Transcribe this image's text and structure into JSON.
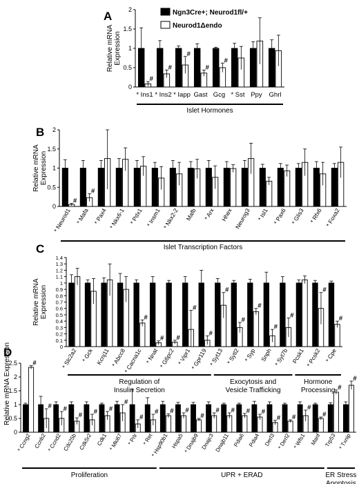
{
  "legend": [
    {
      "label": "Ngn3Cre+; Neurod1fl/+",
      "fill": "#000000"
    },
    {
      "label": "Neurod1Δendo",
      "fill": "#ffffff"
    }
  ],
  "chart_data": [
    {
      "panel": "A",
      "type": "bar",
      "ylabel": "Relative mRNA Expression",
      "ylim": [
        0,
        2
      ],
      "yticks": [
        "0",
        "0.5",
        "1",
        "1.5",
        "2"
      ],
      "categories": [
        "Ins1",
        "Ins2",
        "Iapp",
        "Gast",
        "Gcg",
        "Sst",
        "Ppy",
        "Ghrl"
      ],
      "starred": [
        true,
        true,
        true,
        false,
        false,
        true,
        false,
        false
      ],
      "series": [
        {
          "name": "Ngn3Cre+; Neurod1fl/+",
          "values": [
            1,
            1,
            1,
            1,
            1,
            1,
            1,
            1
          ],
          "errors": [
            0.53,
            0.2,
            0.06,
            0.12,
            0.03,
            0.13,
            0.17,
            0.22
          ]
        },
        {
          "name": "Neurod1Δendo",
          "values": [
            0.08,
            0.34,
            0.57,
            0.36,
            0.5,
            0.75,
            1.19,
            0.94
          ],
          "errors": [
            0.06,
            0.1,
            0.22,
            0.08,
            0.12,
            0.3,
            0.6,
            0.4
          ]
        }
      ],
      "sig": [
        true,
        true,
        true,
        true,
        true,
        false,
        false,
        false
      ],
      "groups": [
        {
          "label": "Islet Hormones",
          "from": 0,
          "to": 7
        }
      ]
    },
    {
      "panel": "B",
      "type": "bar",
      "ylabel": "Relative mRNA Expression",
      "ylim": [
        0,
        2
      ],
      "yticks": [
        "0",
        "0.5",
        "1",
        "1.5",
        "2"
      ],
      "categories": [
        "Neurod1",
        "Mafa",
        "Pax4",
        "Nkx6-1",
        "Pdx1",
        "Insm1",
        "Nkx2-2",
        "Mafb",
        "Arx",
        "Hhex",
        "Neurog3",
        "Isl1",
        "Pax6",
        "Glis3",
        "Rfx6",
        "Foxa2"
      ],
      "starred": [
        true,
        true,
        true,
        true,
        true,
        true,
        true,
        false,
        true,
        false,
        false,
        true,
        true,
        true,
        true,
        true
      ],
      "series": [
        {
          "name": "Ngn3Cre+; Neurod1fl/+",
          "values": [
            1,
            1,
            1,
            1,
            1,
            1,
            1,
            1,
            1,
            1,
            1,
            1,
            1,
            1,
            1,
            1
          ],
          "errors": [
            0.22,
            0.2,
            0.2,
            0.25,
            0.2,
            0.15,
            0.2,
            0.17,
            0.2,
            0.17,
            0.2,
            0.1,
            0.12,
            0.12,
            0.17,
            0.12
          ]
        },
        {
          "name": "Neurod1Δendo",
          "values": [
            0.05,
            0.23,
            1.25,
            1.23,
            1.05,
            0.74,
            0.85,
            0.98,
            0.76,
            0.99,
            1.25,
            0.66,
            0.93,
            1.15,
            0.85,
            1.15
          ]
        },
        {
          "name": "error_ko",
          "values": [
            0.03,
            0.1,
            0.8,
            0.3,
            0.25,
            0.3,
            0.3,
            0.25,
            0.3,
            0.1,
            0.4,
            0.1,
            0.15,
            0.35,
            0.3,
            0.4
          ]
        }
      ],
      "sig": [
        true,
        true,
        false,
        false,
        false,
        false,
        false,
        false,
        false,
        false,
        false,
        false,
        false,
        false,
        false,
        false
      ],
      "groups": [
        {
          "label": "Islet Transcription Factors",
          "from": 0,
          "to": 15
        }
      ]
    },
    {
      "panel": "C",
      "type": "bar",
      "ylabel": "Relative mRNA Expression",
      "ylim": [
        0,
        1.4
      ],
      "yticks": [
        "0",
        "0.1",
        "0.2",
        "0.3",
        "0.4",
        "0.5",
        "0.6",
        "0.7",
        "0.8",
        "0.9",
        "1",
        "1.1",
        "1.2",
        "1.3",
        "1.4"
      ],
      "categories": [
        "Slc2a2",
        "Gck",
        "Kcnj11",
        "Abcc8",
        "Cacna1c",
        "Nnat",
        "G6pc2",
        "Vipr1",
        "Gpr119",
        "Syt13",
        "Sytl2",
        "Syp",
        "Snph",
        "Syt7b",
        "Pcsk1",
        "Pcsk2",
        "Cpe"
      ],
      "starred": [
        true,
        true,
        false,
        true,
        true,
        true,
        true,
        true,
        true,
        true,
        true,
        true,
        false,
        true,
        false,
        true,
        true
      ],
      "series": [
        {
          "name": "Ngn3Cre+; Neurod1fl/+",
          "values": [
            1,
            1,
            1,
            1,
            1,
            1,
            1,
            1,
            1,
            1,
            1,
            1,
            1,
            1,
            1,
            1,
            1
          ],
          "errors": [
            0.13,
            0.05,
            0.08,
            0.15,
            0.05,
            0.1,
            0.04,
            0.1,
            0.2,
            0.07,
            0.04,
            0.06,
            0.17,
            0.1,
            0.05,
            0.04,
            0.03
          ]
        },
        {
          "name": "Neurod1Δendo",
          "values": [
            1.1,
            0.87,
            1.05,
            0.9,
            0.37,
            0.06,
            0.07,
            0.27,
            0.1,
            0.65,
            0.3,
            0.55,
            0.17,
            0.3,
            1.05,
            0.6,
            0.35
          ]
        },
        {
          "name": "error_ko",
          "values": [
            0.13,
            0.2,
            0.25,
            0.2,
            0.05,
            0.03,
            0.03,
            0.3,
            0.07,
            0.2,
            0.08,
            0.05,
            0.1,
            0.15,
            0.06,
            0.25,
            0.05
          ]
        }
      ],
      "sig": [
        false,
        false,
        false,
        false,
        true,
        true,
        true,
        true,
        true,
        true,
        true,
        true,
        true,
        true,
        false,
        true,
        true
      ],
      "groups": [
        {
          "label": "Regulation of",
          "label2": "Insulin Secretion",
          "from": 0,
          "to": 8
        },
        {
          "label": "Exocytosis and",
          "label2": "Vesicle Trafficking",
          "from": 9,
          "to": 13
        },
        {
          "label": "Hormone",
          "label2": "Processing",
          "from": 14,
          "to": 16
        }
      ]
    },
    {
      "panel": "D",
      "type": "bar",
      "ylabel": "Relative mRNA Expression",
      "ylim": [
        0,
        2.5
      ],
      "yticks": [
        "0",
        "0.5",
        "1",
        "1.5",
        "2",
        "2.5"
      ],
      "categories": [
        "Ccng2",
        "Ccnb2",
        "Ccnd2",
        "Cdc25b",
        "Cdk5r2",
        "Cdk1",
        "Mki67",
        "Prlr",
        "Ret",
        "Hsp90b1",
        "Hspa5",
        "Dnajb9",
        "Dnajc3",
        "Dnajb11",
        "Pdia6",
        "Pdia4",
        "Derl3",
        "Derl2",
        "Wfs1",
        "Manf",
        "Trp53",
        "Txnip"
      ],
      "starred": [
        true,
        false,
        true,
        false,
        false,
        false,
        true,
        true,
        true,
        true,
        false,
        true,
        false,
        false,
        false,
        false,
        false,
        true,
        true,
        false,
        false,
        true
      ],
      "series": [
        {
          "name": "Ngn3Cre+; Neurod1fl/+",
          "values": [
            1,
            1,
            1,
            1,
            1,
            1,
            1,
            1,
            1,
            1,
            1,
            1,
            1,
            1,
            1,
            1,
            1,
            1,
            1,
            1,
            1,
            1
          ],
          "errors": [
            0.05,
            0.3,
            0.1,
            0.1,
            0.1,
            0.05,
            0.12,
            0.55,
            0.25,
            0.12,
            0.08,
            0.08,
            0.1,
            0.05,
            0.05,
            0.12,
            0.1,
            0.05,
            0.1,
            0.05,
            0.07,
            0.1
          ]
        },
        {
          "name": "Neurod1Δendo",
          "values": [
            2.35,
            0.5,
            0.5,
            0.4,
            0.45,
            0.6,
            0.7,
            0.3,
            0.45,
            0.6,
            0.6,
            0.45,
            0.6,
            0.6,
            0.6,
            0.55,
            0.35,
            0.4,
            0.6,
            0.5,
            1.45,
            1.7
          ]
        },
        {
          "name": "error_ko",
          "values": [
            0.06,
            0.35,
            0.25,
            0.12,
            0.2,
            0.15,
            0.3,
            0.15,
            0.2,
            0.07,
            0.1,
            0.05,
            0.1,
            0.1,
            0.08,
            0.1,
            0.08,
            0.05,
            0.2,
            0.05,
            0.08,
            0.15
          ]
        }
      ],
      "sig": [
        true,
        true,
        true,
        true,
        true,
        true,
        true,
        true,
        true,
        true,
        true,
        true,
        true,
        true,
        true,
        true,
        true,
        true,
        true,
        true,
        true,
        true
      ],
      "groups": [
        {
          "label": "Proliferation",
          "from": 0,
          "to": 8
        },
        {
          "label": "UPR + ERAD",
          "from": 9,
          "to": 19
        },
        {
          "label": "ER Stress",
          "label2": "Apoptosis",
          "from": 20,
          "to": 21
        }
      ]
    }
  ]
}
